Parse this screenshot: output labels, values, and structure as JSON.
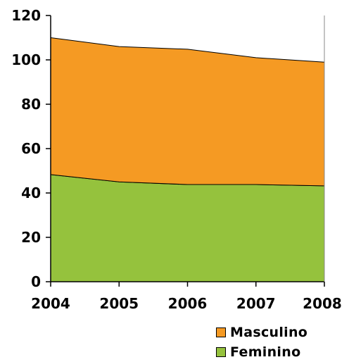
{
  "chart_data": {
    "type": "area",
    "stacked": true,
    "title": "",
    "xlabel": "",
    "ylabel": "",
    "x": [
      "2004",
      "2005",
      "2006",
      "2007",
      "2008"
    ],
    "ylim": [
      0,
      120
    ],
    "yticks": [
      "0",
      "20",
      "40",
      "60",
      "80",
      "100",
      "120"
    ],
    "grid": false,
    "legend_position": "bottom-right",
    "series": [
      {
        "name": "Feminino",
        "values": [
          48.3,
          45,
          43.8,
          43.8,
          43.2
        ],
        "color": "#95c23d"
      },
      {
        "name": "Masculino",
        "values": [
          61.7,
          61,
          61,
          57.2,
          55.8
        ],
        "color": "#f59a23"
      }
    ]
  },
  "legend": {
    "items": [
      {
        "label": "Masculino",
        "color": "#f59a23"
      },
      {
        "label": "Feminino",
        "color": "#95c23d"
      }
    ]
  }
}
